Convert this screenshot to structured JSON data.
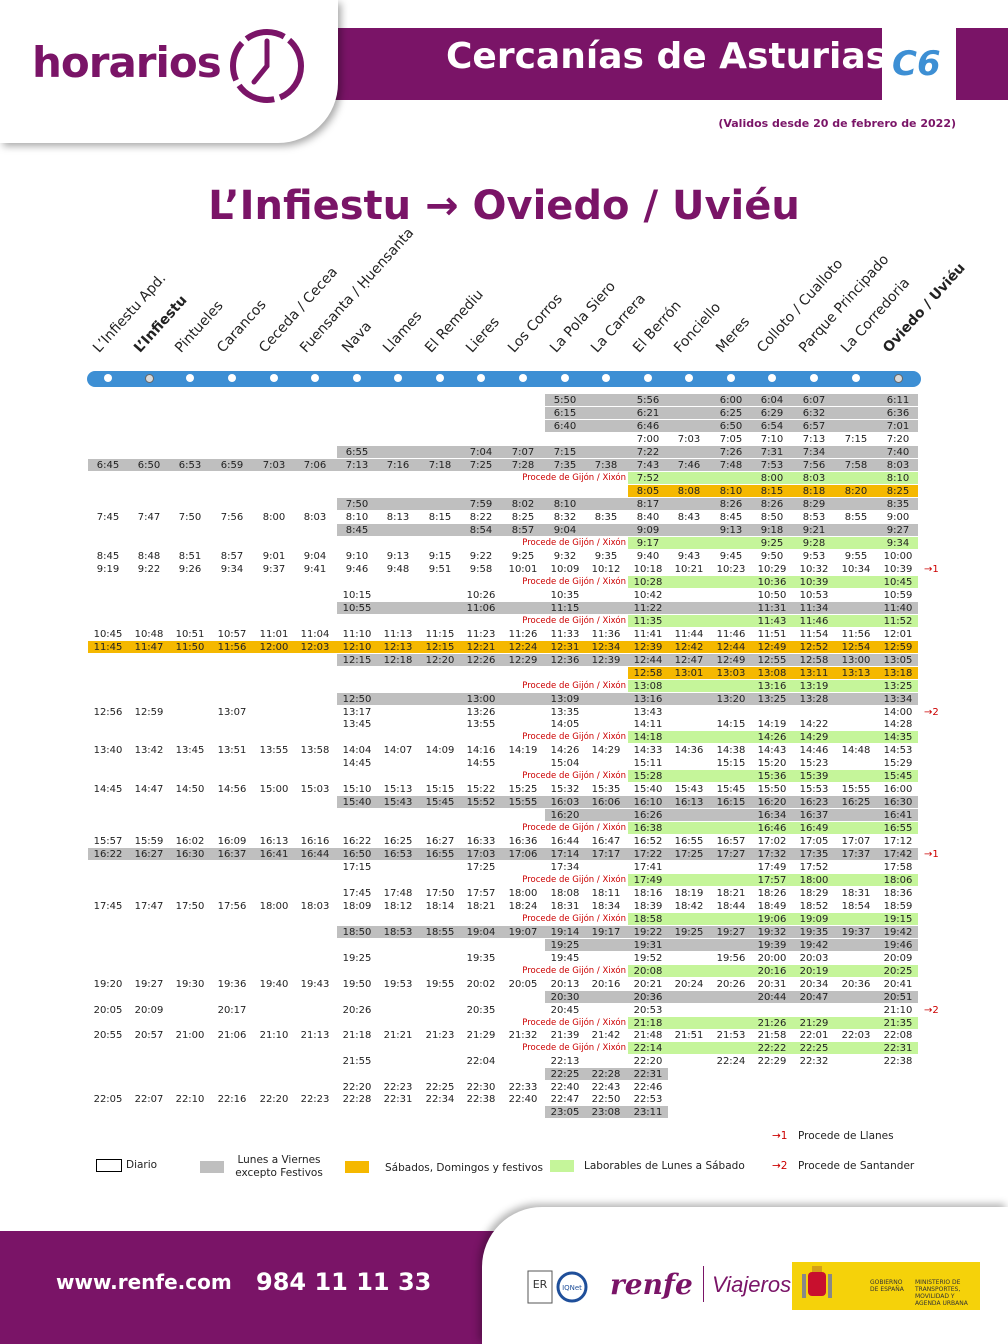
{
  "header": {
    "logo_word": "horarios",
    "title": "Cercanías de Asturias",
    "line": "C6",
    "validity": "(Validos desde 20 de febrero de 2022)"
  },
  "route_title": "L’Infiestu → Oviedo / Uviéu",
  "colors": {
    "purple": "#7a1467",
    "blue": "#3d8fd4",
    "gray": "#bfbfbf",
    "orange": "#f5b800",
    "green": "#c5f59a",
    "red": "#cc0000"
  },
  "stations": [
    "L’Infiestu Apd.",
    "L’Infiestu",
    "Pintueles",
    "Carancos",
    "Ceceda / Cecea",
    "Fuensanta / Ḥuensanta",
    "Nava",
    "Llames",
    "El Remediu",
    "Lieres",
    "Los Corros",
    "La Pola Siero",
    "La Carrera",
    "El Berrón",
    "Fonciello",
    "Meres",
    "Colloto / Cualloto",
    "Parque Principado",
    "La Corredoria",
    "Oviedo / Uviéu"
  ],
  "rows": [
    [
      "",
      "",
      "",
      "",
      "",
      "",
      "",
      "",
      "",
      "",
      "",
      "5:50",
      "",
      "5:56",
      "",
      "6:00",
      "6:04",
      "6:07",
      "",
      "6:11",
      "g",
      ""
    ],
    [
      "",
      "",
      "",
      "",
      "",
      "",
      "",
      "",
      "",
      "",
      "",
      "6:15",
      "",
      "6:21",
      "",
      "6:25",
      "6:29",
      "6:32",
      "",
      "6:36",
      "g",
      ""
    ],
    [
      "",
      "",
      "",
      "",
      "",
      "",
      "",
      "",
      "",
      "",
      "",
      "6:40",
      "",
      "6:46",
      "",
      "6:50",
      "6:54",
      "6:57",
      "",
      "7:01",
      "g",
      ""
    ],
    [
      "",
      "",
      "",
      "",
      "",
      "",
      "",
      "",
      "",
      "",
      "",
      "",
      "",
      "7:00",
      "7:03",
      "7:05",
      "7:10",
      "7:13",
      "7:15",
      "7:20",
      "",
      ""
    ],
    [
      "",
      "",
      "",
      "",
      "",
      "",
      "6:55",
      "",
      "",
      "7:04",
      "7:07",
      "7:15",
      "",
      "7:22",
      "",
      "7:26",
      "7:31",
      "7:34",
      "",
      "7:40",
      "g",
      ""
    ],
    [
      "6:45",
      "6:50",
      "6:53",
      "6:59",
      "7:03",
      "7:06",
      "7:13",
      "7:16",
      "7:18",
      "7:25",
      "7:28",
      "7:35",
      "7:38",
      "7:43",
      "7:46",
      "7:48",
      "7:53",
      "7:56",
      "7:58",
      "8:03",
      "g",
      ""
    ],
    [
      "",
      "",
      "",
      "",
      "",
      "",
      "",
      "",
      "",
      "",
      "",
      "",
      "",
      "7:52",
      "",
      "",
      "8:00",
      "8:03",
      "",
      "8:10",
      "l",
      "Procede de Gijón / Xixón"
    ],
    [
      "",
      "",
      "",
      "",
      "",
      "",
      "",
      "",
      "",
      "",
      "",
      "",
      "",
      "8:05",
      "8:08",
      "8:10",
      "8:15",
      "8:18",
      "8:20",
      "8:25",
      "o",
      ""
    ],
    [
      "",
      "",
      "",
      "",
      "",
      "",
      "7:50",
      "",
      "",
      "7:59",
      "8:02",
      "8:10",
      "",
      "8:17",
      "",
      "8:26",
      "8:26",
      "8:29",
      "",
      "8:35",
      "g",
      ""
    ],
    [
      "7:45",
      "7:47",
      "7:50",
      "7:56",
      "8:00",
      "8:03",
      "8:10",
      "8:13",
      "8:15",
      "8:22",
      "8:25",
      "8:32",
      "8:35",
      "8:40",
      "8:43",
      "8:45",
      "8:50",
      "8:53",
      "8:55",
      "9:00",
      "",
      ""
    ],
    [
      "",
      "",
      "",
      "",
      "",
      "",
      "8:45",
      "",
      "",
      "8:54",
      "8:57",
      "9:04",
      "",
      "9:09",
      "",
      "9:13",
      "9:18",
      "9:21",
      "",
      "9:27",
      "g",
      ""
    ],
    [
      "",
      "",
      "",
      "",
      "",
      "",
      "",
      "",
      "",
      "",
      "",
      "",
      "",
      "9:17",
      "",
      "",
      "9:25",
      "9:28",
      "",
      "9:34",
      "l",
      "Procede de Gijón / Xixón"
    ],
    [
      "8:45",
      "8:48",
      "8:51",
      "8:57",
      "9:01",
      "9:04",
      "9:10",
      "9:13",
      "9:15",
      "9:22",
      "9:25",
      "9:32",
      "9:35",
      "9:40",
      "9:43",
      "9:45",
      "9:50",
      "9:53",
      "9:55",
      "10:00",
      "",
      ""
    ],
    [
      "9:19",
      "9:22",
      "9:26",
      "9:34",
      "9:37",
      "9:41",
      "9:46",
      "9:48",
      "9:51",
      "9:58",
      "10:01",
      "10:09",
      "10:12",
      "10:18",
      "10:21",
      "10:23",
      "10:29",
      "10:32",
      "10:34",
      "10:39",
      "",
      "",
      "→1"
    ],
    [
      "",
      "",
      "",
      "",
      "",
      "",
      "",
      "",
      "",
      "",
      "",
      "",
      "",
      "10:28",
      "",
      "",
      "10:36",
      "10:39",
      "",
      "10:45",
      "l",
      "Procede de Gijón / Xixón"
    ],
    [
      "",
      "",
      "",
      "",
      "",
      "",
      "10:15",
      "",
      "",
      "10:26",
      "",
      "10:35",
      "",
      "10:42",
      "",
      "",
      "10:50",
      "10:53",
      "",
      "10:59",
      "",
      ""
    ],
    [
      "",
      "",
      "",
      "",
      "",
      "",
      "10:55",
      "",
      "",
      "11:06",
      "",
      "11:15",
      "",
      "11:22",
      "",
      "",
      "11:31",
      "11:34",
      "",
      "11:40",
      "g",
      ""
    ],
    [
      "",
      "",
      "",
      "",
      "",
      "",
      "",
      "",
      "",
      "",
      "",
      "",
      "",
      "11:35",
      "",
      "",
      "11:43",
      "11:46",
      "",
      "11:52",
      "l",
      "Procede de Gijón / Xixón"
    ],
    [
      "10:45",
      "10:48",
      "10:51",
      "10:57",
      "11:01",
      "11:04",
      "11:10",
      "11:13",
      "11:15",
      "11:23",
      "11:26",
      "11:33",
      "11:36",
      "11:41",
      "11:44",
      "11:46",
      "11:51",
      "11:54",
      "11:56",
      "12:01",
      "",
      ""
    ],
    [
      "11:45",
      "11:47",
      "11:50",
      "11:56",
      "12:00",
      "12:03",
      "12:10",
      "12:13",
      "12:15",
      "12:21",
      "12:24",
      "12:31",
      "12:34",
      "12:39",
      "12:42",
      "12:44",
      "12:49",
      "12:52",
      "12:54",
      "12:59",
      "o",
      ""
    ],
    [
      "",
      "",
      "",
      "",
      "",
      "",
      "12:15",
      "12:18",
      "12:20",
      "12:26",
      "12:29",
      "12:36",
      "12:39",
      "12:44",
      "12:47",
      "12:49",
      "12:55",
      "12:58",
      "13:00",
      "13:05",
      "g",
      ""
    ],
    [
      "",
      "",
      "",
      "",
      "",
      "",
      "",
      "",
      "",
      "",
      "",
      "",
      "",
      "12:58",
      "13:01",
      "13:03",
      "13:08",
      "13:11",
      "13:13",
      "13:18",
      "o",
      ""
    ],
    [
      "",
      "",
      "",
      "",
      "",
      "",
      "",
      "",
      "",
      "",
      "",
      "",
      "",
      "13:08",
      "",
      "",
      "13:16",
      "13:19",
      "",
      "13:25",
      "l",
      "Procede de Gijón / Xixón"
    ],
    [
      "",
      "",
      "",
      "",
      "",
      "",
      "12:50",
      "",
      "",
      "13:00",
      "",
      "13:09",
      "",
      "13:16",
      "",
      "13:20",
      "13:25",
      "13:28",
      "",
      "13:34",
      "g",
      ""
    ],
    [
      "12:56",
      "12:59",
      "",
      "13:07",
      "",
      "",
      "13:17",
      "",
      "",
      "13:26",
      "",
      "13:35",
      "",
      "13:43",
      "",
      "",
      "",
      "",
      "",
      "14:00",
      "",
      "",
      "→2"
    ],
    [
      "",
      "",
      "",
      "",
      "",
      "",
      "13:45",
      "",
      "",
      "13:55",
      "",
      "14:05",
      "",
      "14:11",
      "",
      "14:15",
      "14:19",
      "14:22",
      "",
      "14:28",
      "",
      ""
    ],
    [
      "",
      "",
      "",
      "",
      "",
      "",
      "",
      "",
      "",
      "",
      "",
      "",
      "",
      "14:18",
      "",
      "",
      "14:26",
      "14:29",
      "",
      "14:35",
      "l",
      "Procede de Gijón / Xixón"
    ],
    [
      "13:40",
      "13:42",
      "13:45",
      "13:51",
      "13:55",
      "13:58",
      "14:04",
      "14:07",
      "14:09",
      "14:16",
      "14:19",
      "14:26",
      "14:29",
      "14:33",
      "14:36",
      "14:38",
      "14:43",
      "14:46",
      "14:48",
      "14:53",
      "",
      ""
    ],
    [
      "",
      "",
      "",
      "",
      "",
      "",
      "14:45",
      "",
      "",
      "14:55",
      "",
      "15:04",
      "",
      "15:11",
      "",
      "15:15",
      "15:20",
      "15:23",
      "",
      "15:29",
      "",
      ""
    ],
    [
      "",
      "",
      "",
      "",
      "",
      "",
      "",
      "",
      "",
      "",
      "",
      "",
      "",
      "15:28",
      "",
      "",
      "15:36",
      "15:39",
      "",
      "15:45",
      "l",
      "Procede de Gijón / Xixón"
    ],
    [
      "14:45",
      "14:47",
      "14:50",
      "14:56",
      "15:00",
      "15:03",
      "15:10",
      "15:13",
      "15:15",
      "15:22",
      "15:25",
      "15:32",
      "15:35",
      "15:40",
      "15:43",
      "15:45",
      "15:50",
      "15:53",
      "15:55",
      "16:00",
      "",
      ""
    ],
    [
      "",
      "",
      "",
      "",
      "",
      "",
      "15:40",
      "15:43",
      "15:45",
      "15:52",
      "15:55",
      "16:03",
      "16:06",
      "16:10",
      "16:13",
      "16:15",
      "16:20",
      "16:23",
      "16:25",
      "16:30",
      "g",
      ""
    ],
    [
      "",
      "",
      "",
      "",
      "",
      "",
      "",
      "",
      "",
      "",
      "",
      "16:20",
      "",
      "16:26",
      "",
      "",
      "16:34",
      "16:37",
      "",
      "16:41",
      "g",
      ""
    ],
    [
      "",
      "",
      "",
      "",
      "",
      "",
      "",
      "",
      "",
      "",
      "",
      "",
      "",
      "16:38",
      "",
      "",
      "16:46",
      "16:49",
      "",
      "16:55",
      "l",
      "Procede de Gijón / Xixón"
    ],
    [
      "15:57",
      "15:59",
      "16:02",
      "16:09",
      "16:13",
      "16:16",
      "16:22",
      "16:25",
      "16:27",
      "16:33",
      "16:36",
      "16:44",
      "16:47",
      "16:52",
      "16:55",
      "16:57",
      "17:02",
      "17:05",
      "17:07",
      "17:12",
      "",
      ""
    ],
    [
      "16:22",
      "16:27",
      "16:30",
      "16:37",
      "16:41",
      "16:44",
      "16:50",
      "16:53",
      "16:55",
      "17:03",
      "17:06",
      "17:14",
      "17:17",
      "17:22",
      "17:25",
      "17:27",
      "17:32",
      "17:35",
      "17:37",
      "17:42",
      "g",
      "",
      "→1"
    ],
    [
      "",
      "",
      "",
      "",
      "",
      "",
      "17:15",
      "",
      "",
      "17:25",
      "",
      "17:34",
      "",
      "17:41",
      "",
      "",
      "17:49",
      "17:52",
      "",
      "17:58",
      "",
      ""
    ],
    [
      "",
      "",
      "",
      "",
      "",
      "",
      "",
      "",
      "",
      "",
      "",
      "",
      "",
      "17:49",
      "",
      "",
      "17:57",
      "18:00",
      "",
      "18:06",
      "l",
      "Procede de Gijón / Xixón"
    ],
    [
      "",
      "",
      "",
      "",
      "",
      "",
      "17:45",
      "17:48",
      "17:50",
      "17:57",
      "18:00",
      "18:08",
      "18:11",
      "18:16",
      "18:19",
      "18:21",
      "18:26",
      "18:29",
      "18:31",
      "18:36",
      "",
      ""
    ],
    [
      "17:45",
      "17:47",
      "17:50",
      "17:56",
      "18:00",
      "18:03",
      "18:09",
      "18:12",
      "18:14",
      "18:21",
      "18:24",
      "18:31",
      "18:34",
      "18:39",
      "18:42",
      "18:44",
      "18:49",
      "18:52",
      "18:54",
      "18:59",
      "",
      ""
    ],
    [
      "",
      "",
      "",
      "",
      "",
      "",
      "",
      "",
      "",
      "",
      "",
      "",
      "",
      "18:58",
      "",
      "",
      "19:06",
      "19:09",
      "",
      "19:15",
      "l",
      "Procede de Gijón / Xixón"
    ],
    [
      "",
      "",
      "",
      "",
      "",
      "",
      "18:50",
      "18:53",
      "18:55",
      "19:04",
      "19:07",
      "19:14",
      "19:17",
      "19:22",
      "19:25",
      "19:27",
      "19:32",
      "19:35",
      "19:37",
      "19:42",
      "g",
      ""
    ],
    [
      "",
      "",
      "",
      "",
      "",
      "",
      "",
      "",
      "",
      "",
      "",
      "19:25",
      "",
      "19:31",
      "",
      "",
      "19:39",
      "19:42",
      "",
      "19:46",
      "g",
      ""
    ],
    [
      "",
      "",
      "",
      "",
      "",
      "",
      "19:25",
      "",
      "",
      "19:35",
      "",
      "19:45",
      "",
      "19:52",
      "",
      "19:56",
      "20:00",
      "20:03",
      "",
      "20:09",
      "",
      ""
    ],
    [
      "",
      "",
      "",
      "",
      "",
      "",
      "",
      "",
      "",
      "",
      "",
      "",
      "",
      "20:08",
      "",
      "",
      "20:16",
      "20:19",
      "",
      "20:25",
      "l",
      "Procede de Gijón / Xixón"
    ],
    [
      "19:20",
      "19:27",
      "19:30",
      "19:36",
      "19:40",
      "19:43",
      "19:50",
      "19:53",
      "19:55",
      "20:02",
      "20:05",
      "20:13",
      "20:16",
      "20:21",
      "20:24",
      "20:26",
      "20:31",
      "20:34",
      "20:36",
      "20:41",
      "",
      ""
    ],
    [
      "",
      "",
      "",
      "",
      "",
      "",
      "",
      "",
      "",
      "",
      "",
      "20:30",
      "",
      "20:36",
      "",
      "",
      "20:44",
      "20:47",
      "",
      "20:51",
      "g",
      ""
    ],
    [
      "20:05",
      "20:09",
      "",
      "20:17",
      "",
      "",
      "20:26",
      "",
      "",
      "20:35",
      "",
      "20:45",
      "",
      "20:53",
      "",
      "",
      "",
      "",
      "",
      "21:10",
      "",
      "",
      "→2"
    ],
    [
      "",
      "",
      "",
      "",
      "",
      "",
      "",
      "",
      "",
      "",
      "",
      "",
      "",
      "21:18",
      "",
      "",
      "21:26",
      "21:29",
      "",
      "21:35",
      "l",
      "Procede de Gijón / Xixón"
    ],
    [
      "20:55",
      "20:57",
      "21:00",
      "21:06",
      "21:10",
      "21:13",
      "21:18",
      "21:21",
      "21:23",
      "21:29",
      "21:32",
      "21:39",
      "21:42",
      "21:48",
      "21:51",
      "21:53",
      "21:58",
      "22:01",
      "22:03",
      "22:08",
      "",
      ""
    ],
    [
      "",
      "",
      "",
      "",
      "",
      "",
      "",
      "",
      "",
      "",
      "",
      "",
      "",
      "22:14",
      "",
      "",
      "22:22",
      "22:25",
      "",
      "22:31",
      "l",
      "Procede de Gijón / Xixón"
    ],
    [
      "",
      "",
      "",
      "",
      "",
      "",
      "21:55",
      "",
      "",
      "22:04",
      "",
      "22:13",
      "",
      "22:20",
      "",
      "22:24",
      "22:29",
      "22:32",
      "",
      "22:38",
      "",
      ""
    ],
    [
      "",
      "",
      "",
      "",
      "",
      "",
      "",
      "",
      "",
      "",
      "",
      "22:25",
      "22:28",
      "22:31",
      "",
      "",
      "",
      "",
      "",
      "",
      "g",
      ""
    ],
    [
      "",
      "",
      "",
      "",
      "",
      "",
      "22:20",
      "22:23",
      "22:25",
      "22:30",
      "22:33",
      "22:40",
      "22:43",
      "22:46",
      "",
      "",
      "",
      "",
      "",
      "",
      "",
      ""
    ],
    [
      "22:05",
      "22:07",
      "22:10",
      "22:16",
      "22:20",
      "22:23",
      "22:28",
      "22:31",
      "22:34",
      "22:38",
      "22:40",
      "22:47",
      "22:50",
      "22:53",
      "",
      "",
      "",
      "",
      "",
      "",
      "",
      ""
    ],
    [
      "",
      "",
      "",
      "",
      "",
      "",
      "",
      "",
      "",
      "",
      "",
      "23:05",
      "23:08",
      "23:11",
      "",
      "",
      "",
      "",
      "",
      "",
      "g",
      ""
    ]
  ],
  "legend": {
    "diario": "Diario",
    "lv": "Lunes a Viernes excepto Festivos",
    "sdf": "Sábados, Domingos y festivos",
    "lab": "Laborables de Lunes a Sábado",
    "n1_mark": "→1",
    "n1": "Procede de Llanes",
    "n2_mark": "→2",
    "n2": "Procede de Santander"
  },
  "footer": {
    "web": "www.renfe.com",
    "phone": "984 11 11 33",
    "brand": "renfe",
    "brand2": "Viajeros",
    "gov1": "GOBIERNO DE ESPAÑA",
    "gov2": "MINISTERIO DE TRANSPORTES, MOVILIDAD Y AGENDA URBANA"
  }
}
